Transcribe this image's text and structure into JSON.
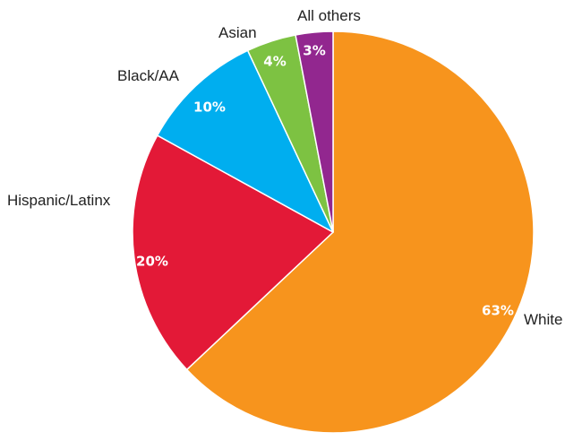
{
  "chart_data": {
    "type": "pie",
    "title": "",
    "start_angle": "12 o'clock",
    "direction": "clockwise",
    "slices": [
      {
        "label": "White",
        "value": 63,
        "value_label": "63%",
        "color": "#F7941D"
      },
      {
        "label": "Hispanic/Latinx",
        "value": 20,
        "value_label": "20%",
        "color": "#E31937"
      },
      {
        "label": "Black/AA",
        "value": 10,
        "value_label": "10%",
        "color": "#00AEEF"
      },
      {
        "label": "Asian",
        "value": 4,
        "value_label": "4%",
        "color": "#7DC242"
      },
      {
        "label": "All others",
        "value": 3,
        "value_label": "3%",
        "color": "#92278F"
      }
    ],
    "slice_border_color": "#ffffff"
  }
}
